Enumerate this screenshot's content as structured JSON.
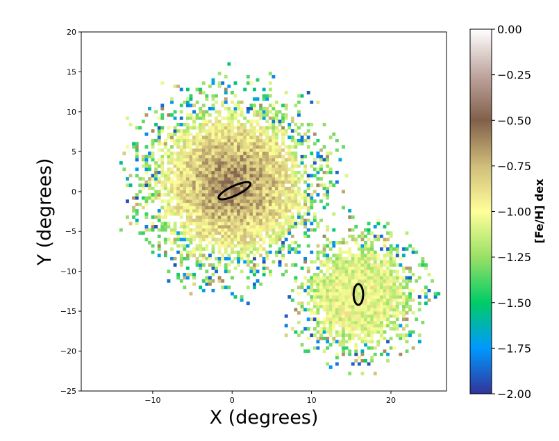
{
  "chart_data": {
    "type": "heatmap",
    "title": "",
    "xlabel": "X (degrees)",
    "ylabel": "Y  (degrees)",
    "xlim": [
      -19,
      27
    ],
    "ylim": [
      -25,
      20
    ],
    "x_ticks": [
      -10,
      0,
      10,
      20
    ],
    "y_ticks": [
      20,
      15,
      10,
      5,
      0,
      -5,
      -10,
      -15,
      -20,
      -25
    ],
    "x_tick_labels": [
      "−10",
      "0",
      "10",
      "20"
    ],
    "y_tick_labels": [
      "20",
      "15",
      "10",
      "5",
      "0",
      "−5",
      "−10",
      "−15",
      "−20",
      "−25"
    ],
    "grid": false,
    "colorbar": {
      "label": "[Fe/H] dex",
      "range": [
        -2.0,
        0.0
      ],
      "colormap": "terrain",
      "ticks": [
        0.0,
        -0.25,
        -0.5,
        -0.75,
        -1.0,
        -1.25,
        -1.5,
        -1.75,
        -2.0
      ],
      "tick_labels": [
        "0.00",
        "−0.25",
        "−0.50",
        "−0.75",
        "−1.00",
        "−1.25",
        "−1.50",
        "−1.75",
        "−2.00"
      ]
    },
    "clouds": [
      {
        "center_x": 0.0,
        "center_y": 1.0,
        "extent": 14,
        "core_feh": -0.55
      },
      {
        "center_x": 16.0,
        "center_y": -13.0,
        "extent": 9.5,
        "core_feh": -1.0
      }
    ],
    "ellipses": [
      {
        "center_x": 0.3,
        "center_y": 0.1,
        "semi_major": 2.2,
        "semi_minor": 0.6,
        "angle_deg": 25
      },
      {
        "center_x": 15.9,
        "center_y": -12.9,
        "semi_major": 1.3,
        "semi_minor": 0.6,
        "angle_deg": 90
      }
    ],
    "colors": {
      "colormap_stops": [
        "#333399",
        "#0099ff",
        "#00cc66",
        "#99e066",
        "#ffff99",
        "#cfbd7a",
        "#81604a",
        "#c0a6a0",
        "#ffffff"
      ],
      "ellipse": "#000000"
    }
  }
}
